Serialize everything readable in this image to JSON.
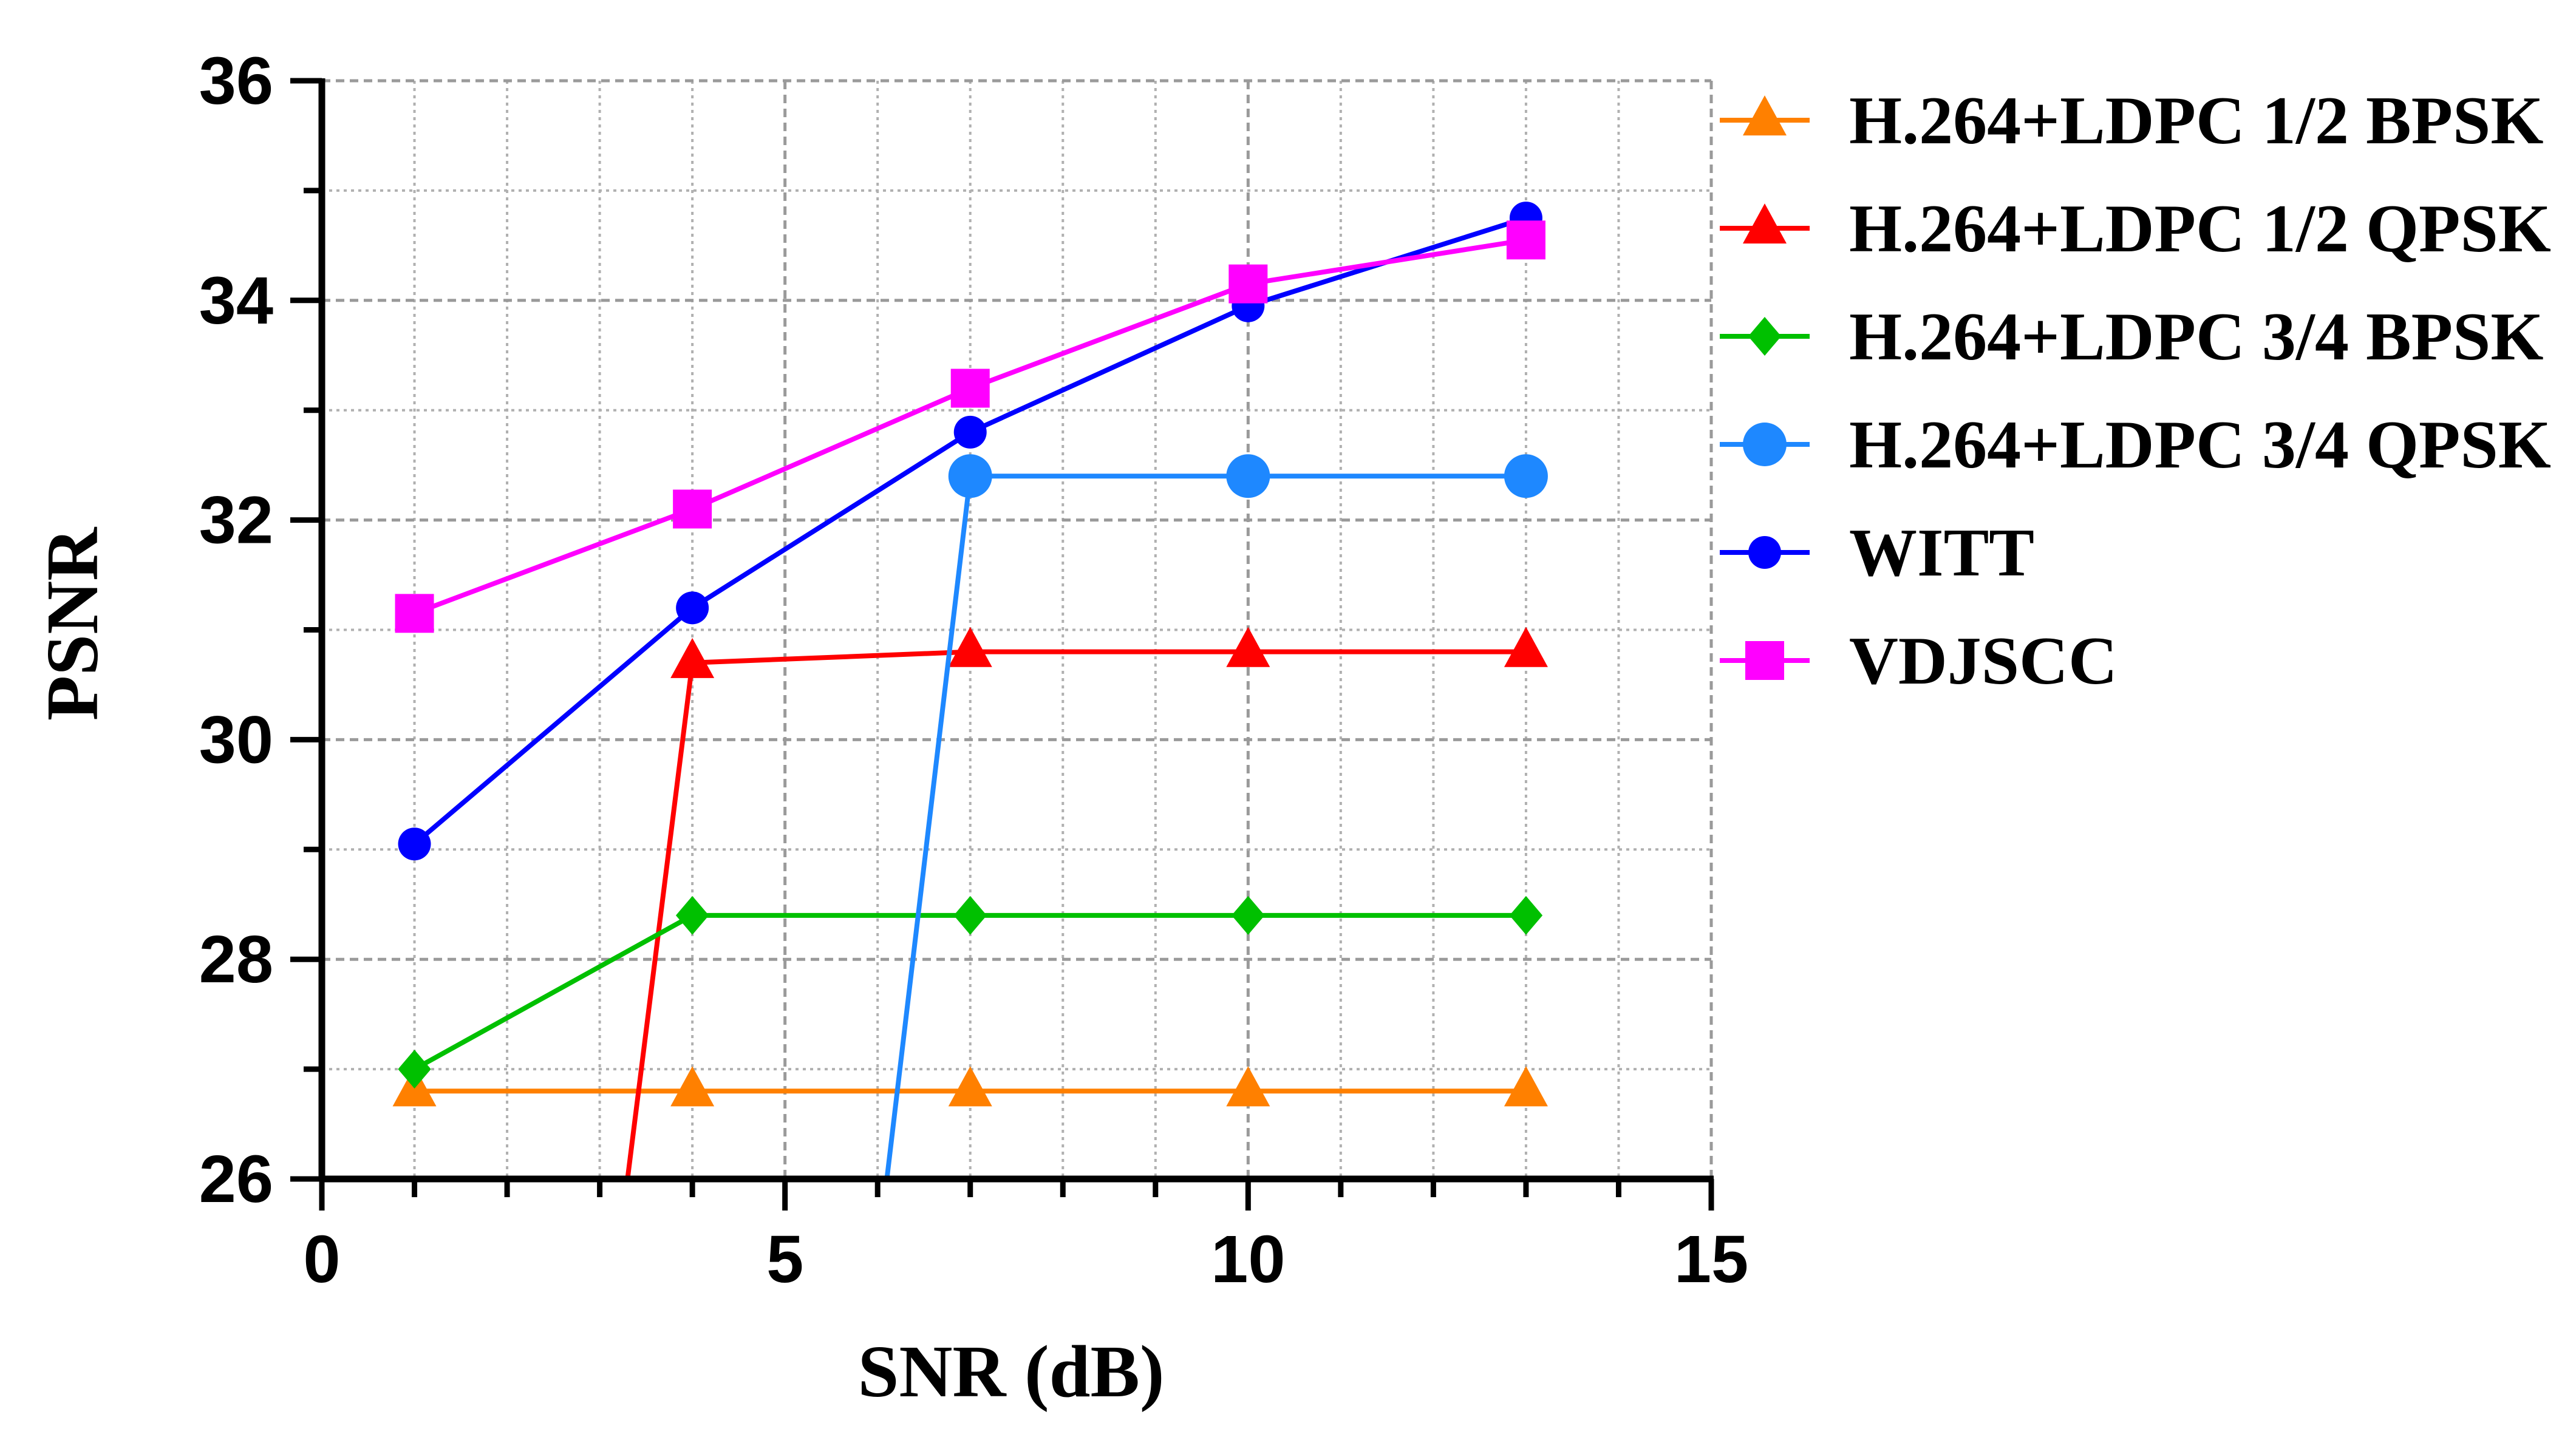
{
  "chart_data": {
    "type": "line",
    "title": "",
    "xlabel": "SNR  (dB)",
    "ylabel": "PSNR",
    "xlim": [
      0,
      15
    ],
    "ylim": [
      26,
      36
    ],
    "xticks": [
      0,
      5,
      10,
      15
    ],
    "xtick_labels": [
      "0",
      "5",
      "10",
      "15"
    ],
    "xminor_step": 1,
    "yticks": [
      26,
      28,
      30,
      32,
      34,
      36
    ],
    "ytick_labels": [
      "26",
      "28",
      "30",
      "32",
      "34",
      "36"
    ],
    "yminor_step": 1,
    "grid": true,
    "legend_position": "right",
    "series": [
      {
        "name": "H.264+LDPC 1/2 BPSK",
        "color": "#ff8000",
        "marker": "triangle",
        "x": [
          1,
          4,
          7,
          10,
          13
        ],
        "y": [
          26.8,
          26.8,
          26.8,
          26.8,
          26.8
        ]
      },
      {
        "name": "H.264+LDPC 1/2 QPSK",
        "color": "#ff0000",
        "marker": "triangle",
        "x": [
          3.3,
          4,
          7,
          10,
          13
        ],
        "y": [
          26.0,
          30.7,
          30.8,
          30.8,
          30.8
        ],
        "marker_mask": [
          false,
          true,
          true,
          true,
          true
        ]
      },
      {
        "name": "H.264+LDPC 3/4 BPSK",
        "color": "#00c000",
        "marker": "diamond",
        "x": [
          1,
          4,
          7,
          10,
          13
        ],
        "y": [
          27.0,
          28.4,
          28.4,
          28.4,
          28.4
        ]
      },
      {
        "name": "H.264+LDPC 3/4 QPSK",
        "color": "#1e88ff",
        "marker": "circle",
        "x": [
          6.1,
          7,
          10,
          13
        ],
        "y": [
          26.0,
          32.4,
          32.4,
          32.4
        ],
        "marker_mask": [
          false,
          true,
          true,
          true
        ]
      },
      {
        "name": "WITT",
        "color": "#0000ff",
        "marker": "circle-small",
        "x": [
          1,
          4,
          7,
          10,
          13
        ],
        "y": [
          29.05,
          31.2,
          32.8,
          33.95,
          34.75
        ]
      },
      {
        "name": "VDJSCC",
        "color": "#ff00ff",
        "marker": "square",
        "x": [
          1,
          4,
          7,
          10,
          13
        ],
        "y": [
          31.15,
          32.1,
          33.2,
          34.15,
          34.55
        ]
      }
    ]
  }
}
